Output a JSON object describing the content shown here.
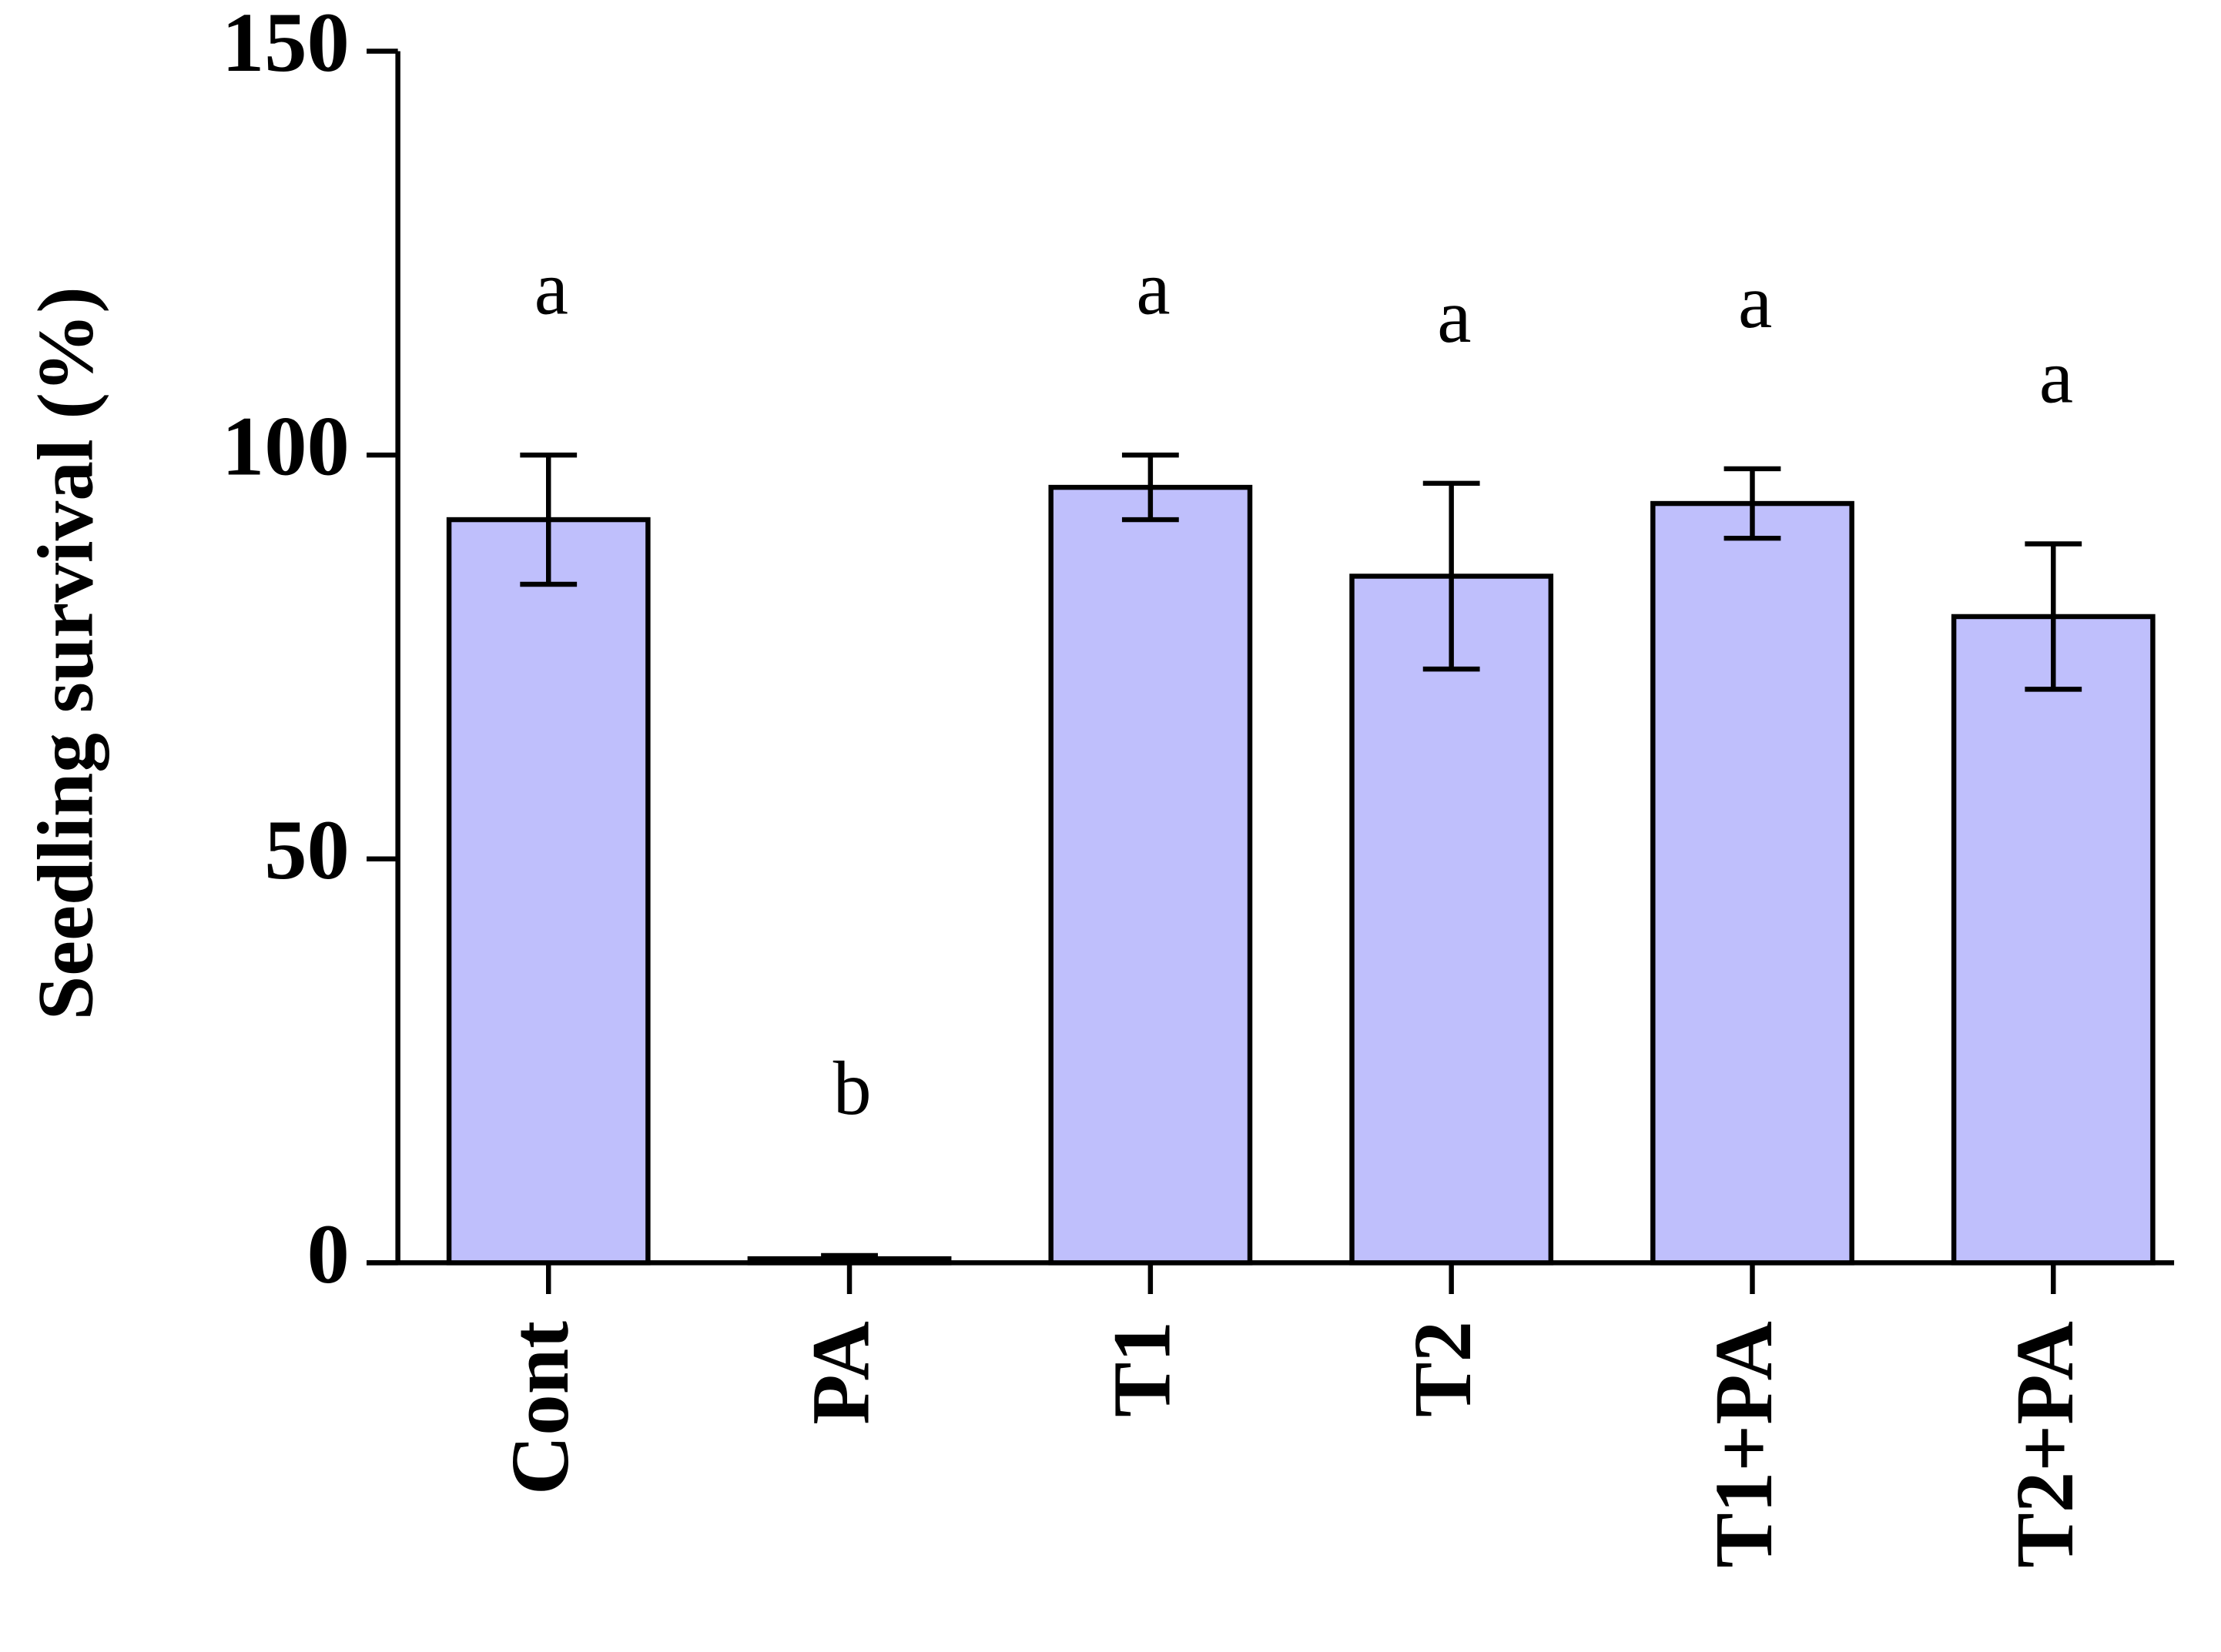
{
  "chart_data": {
    "type": "bar",
    "y_label": "Seedling survival (%)",
    "categories": [
      "Cont",
      "PA",
      "T1",
      "T2",
      "T1+PA",
      "T2+PA"
    ],
    "values": [
      92,
      0.5,
      96,
      85,
      94,
      80
    ],
    "errors": [
      8,
      0.4,
      4,
      11.5,
      4.3,
      9
    ],
    "annotations": [
      "a",
      "b",
      "a",
      "a",
      "a",
      "a"
    ],
    "color": "#bfbffc",
    "ylim": [
      0,
      150
    ],
    "yticks": [
      0,
      50,
      100,
      150
    ]
  }
}
